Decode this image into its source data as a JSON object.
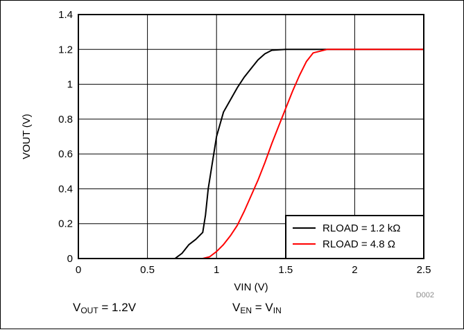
{
  "chart_data": {
    "type": "line",
    "xlabel": "VIN (V)",
    "ylabel": "VOUT (V)",
    "xlim": [
      0,
      2.5
    ],
    "ylim": [
      0,
      1.4
    ],
    "x_ticks": [
      "0",
      "0.5",
      "1",
      "1.5",
      "2",
      "2.5"
    ],
    "y_ticks": [
      "0",
      "0.2",
      "0.4",
      "0.6",
      "0.8",
      "1",
      "1.2",
      "1.4"
    ],
    "grid": true,
    "legend_position": "bottom-right",
    "series": [
      {
        "name": "RLOAD = 1.2 kΩ",
        "color": "#000000",
        "points": [
          [
            0.6,
            0.0
          ],
          [
            0.7,
            0.0
          ],
          [
            0.75,
            0.03
          ],
          [
            0.8,
            0.08
          ],
          [
            0.85,
            0.11
          ],
          [
            0.9,
            0.15
          ],
          [
            0.92,
            0.25
          ],
          [
            0.94,
            0.4
          ],
          [
            0.97,
            0.55
          ],
          [
            1.0,
            0.7
          ],
          [
            1.05,
            0.84
          ],
          [
            1.1,
            0.91
          ],
          [
            1.15,
            0.98
          ],
          [
            1.2,
            1.04
          ],
          [
            1.25,
            1.09
          ],
          [
            1.3,
            1.14
          ],
          [
            1.35,
            1.175
          ],
          [
            1.4,
            1.195
          ],
          [
            1.5,
            1.2
          ],
          [
            1.8,
            1.2
          ],
          [
            2.5,
            1.2
          ]
        ]
      },
      {
        "name": "RLOAD = 4.8 Ω",
        "color": "#ff0000",
        "points": [
          [
            0.6,
            0.0
          ],
          [
            0.7,
            0.0
          ],
          [
            0.8,
            0.0
          ],
          [
            0.9,
            0.0
          ],
          [
            0.95,
            0.01
          ],
          [
            1.0,
            0.04
          ],
          [
            1.05,
            0.08
          ],
          [
            1.1,
            0.13
          ],
          [
            1.15,
            0.19
          ],
          [
            1.2,
            0.27
          ],
          [
            1.25,
            0.36
          ],
          [
            1.3,
            0.45
          ],
          [
            1.35,
            0.55
          ],
          [
            1.4,
            0.66
          ],
          [
            1.45,
            0.76
          ],
          [
            1.5,
            0.86
          ],
          [
            1.55,
            0.96
          ],
          [
            1.6,
            1.05
          ],
          [
            1.65,
            1.13
          ],
          [
            1.7,
            1.18
          ],
          [
            1.75,
            1.19
          ],
          [
            1.8,
            1.2
          ],
          [
            2.0,
            1.2
          ],
          [
            2.5,
            1.2
          ]
        ]
      }
    ]
  },
  "watermark": "D002",
  "captions": {
    "vout": {
      "main": "V",
      "sub": "OUT",
      "rest": " = 1.2V"
    },
    "ven": {
      "main": "V",
      "sub": "EN",
      "mid": " = V",
      "sub2": "IN"
    }
  }
}
